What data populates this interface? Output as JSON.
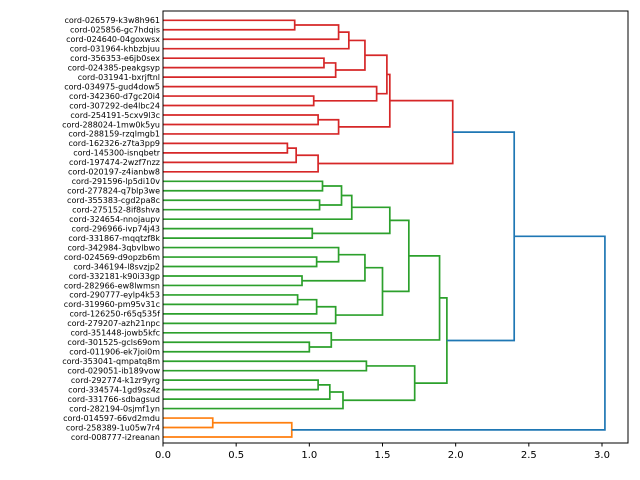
{
  "chart_data": {
    "type": "dendrogram",
    "orientation": "right",
    "title": "",
    "xlabel": "",
    "ylabel": "",
    "x_axis": {
      "tick_values": [
        0.0,
        0.5,
        1.0,
        1.5,
        2.0,
        2.5,
        3.0
      ],
      "tick_labels": [
        "0.0",
        "0.5",
        "1.0",
        "1.5",
        "2.0",
        "2.5",
        "3.0"
      ],
      "range": [
        0.0,
        3.18
      ],
      "grid": false
    },
    "palette": {
      "blue": "#1f77b4",
      "orange": "#ff7f0e",
      "green": "#2ca02c",
      "red": "#d62728",
      "spine": "#000000"
    },
    "color_threshold": 2.1,
    "cluster_color_ranges": [
      {
        "min_leaf": 0,
        "max_leaf": 16,
        "color": "red"
      },
      {
        "min_leaf": 17,
        "max_leaf": 41,
        "color": "green"
      },
      {
        "min_leaf": 42,
        "max_leaf": 44,
        "color": "orange"
      }
    ],
    "leaves": [
      "cord-026579-k3w8h961",
      "cord-025856-gc7hdqis",
      "cord-024640-04goxwsx",
      "cord-031964-khbzbjuu",
      "cord-356353-e6jb0sex",
      "cord-024385-peakgsyp",
      "cord-031941-bxrjftnl",
      "cord-034975-gud4dow5",
      "cord-342360-d7gc20i4",
      "cord-307292-de4lbc24",
      "cord-254191-5cxv9l3c",
      "cord-288024-1mw0k5yu",
      "cord-288159-rzqlmgb1",
      "cord-162326-z7ta3pp9",
      "cord-145300-isnqbetr",
      "cord-197474-2wzf7nzz",
      "cord-020197-z4ianbw8",
      "cord-291596-lp5di10v",
      "cord-277824-q7blp3we",
      "cord-355383-cgd2pa8c",
      "cord-275152-8if8shva",
      "cord-324654-nnojaupv",
      "cord-296966-ivp74j43",
      "cord-331867-mqqtzf8k",
      "cord-342984-3qbvlbwo",
      "cord-024569-d9opzb6m",
      "cord-346194-l8svzjp2",
      "cord-332181-k90i33gp",
      "cord-282966-ew8lwmsn",
      "cord-290777-eylp4k53",
      "cord-319960-pm95v31c",
      "cord-126250-r65q535f",
      "cord-279207-azh21npc",
      "cord-351448-jowb5kfc",
      "cord-301525-gcls69om",
      "cord-011906-ek7joi0m",
      "cord-353041-qmpatq8m",
      "cord-029051-ib189vow",
      "cord-292774-k1zr9yrg",
      "cord-334574-1gd9sz4z",
      "cord-331766-sdbagsud",
      "cord-282194-0sjmf1yn",
      "cord-014597-66vd2mdu",
      "cord-258389-1u05w7r4",
      "cord-008777-i2reanan"
    ],
    "tree": {
      "d": 3.02,
      "c": [
        {
          "d": 2.4,
          "c": [
            {
              "d": 1.98,
              "c": [
                {
                  "d": 1.55,
                  "c": [
                    {
                      "d": 1.53,
                      "c": [
                        {
                          "d": 1.38,
                          "c": [
                            {
                              "d": 1.27,
                              "c": [
                                {
                                  "d": 1.2,
                                  "c": [
                                    {
                                      "d": 0.9,
                                      "c": [
                                        0,
                                        1
                                      ]
                                    },
                                    2
                                  ]
                                },
                                3
                              ]
                            },
                            {
                              "d": 1.18,
                              "c": [
                                {
                                  "d": 1.1,
                                  "c": [
                                    4,
                                    5
                                  ]
                                },
                                6
                              ]
                            }
                          ]
                        },
                        {
                          "d": 1.46,
                          "c": [
                            7,
                            {
                              "d": 1.03,
                              "c": [
                                8,
                                9
                              ]
                            }
                          ]
                        }
                      ]
                    },
                    {
                      "d": 1.2,
                      "c": [
                        {
                          "d": 1.06,
                          "c": [
                            10,
                            11
                          ]
                        },
                        12
                      ]
                    }
                  ]
                },
                {
                  "d": 1.06,
                  "c": [
                    {
                      "d": 0.91,
                      "c": [
                        {
                          "d": 0.85,
                          "c": [
                            13,
                            14
                          ]
                        },
                        15
                      ]
                    },
                    16
                  ]
                }
              ]
            },
            {
              "d": 1.94,
              "c": [
                {
                  "d": 1.89,
                  "c": [
                    {
                      "d": 1.68,
                      "c": [
                        {
                          "d": 1.55,
                          "c": [
                            {
                              "d": 1.29,
                              "c": [
                                {
                                  "d": 1.22,
                                  "c": [
                                    {
                                      "d": 1.09,
                                      "c": [
                                        17,
                                        18
                                      ]
                                    },
                                    {
                                      "d": 1.07,
                                      "c": [
                                        19,
                                        20
                                      ]
                                    }
                                  ]
                                },
                                21
                              ]
                            },
                            {
                              "d": 1.02,
                              "c": [
                                22,
                                23
                              ]
                            }
                          ]
                        },
                        {
                          "d": 1.5,
                          "c": [
                            {
                              "d": 1.38,
                              "c": [
                                {
                                  "d": 1.2,
                                  "c": [
                                    24,
                                    {
                                      "d": 1.05,
                                      "c": [
                                        25,
                                        26
                                      ]
                                    }
                                  ]
                                },
                                {
                                  "d": 0.95,
                                  "c": [
                                    27,
                                    28
                                  ]
                                }
                              ]
                            },
                            {
                              "d": 1.18,
                              "c": [
                                {
                                  "d": 1.05,
                                  "c": [
                                    {
                                      "d": 0.92,
                                      "c": [
                                        29,
                                        30
                                      ]
                                    },
                                    31
                                  ]
                                },
                                32
                              ]
                            }
                          ]
                        }
                      ]
                    },
                    {
                      "d": 1.15,
                      "c": [
                        33,
                        {
                          "d": 1.0,
                          "c": [
                            34,
                            35
                          ]
                        }
                      ]
                    }
                  ]
                },
                {
                  "d": 1.72,
                  "c": [
                    {
                      "d": 1.39,
                      "c": [
                        36,
                        37
                      ]
                    },
                    {
                      "d": 1.23,
                      "c": [
                        {
                          "d": 1.14,
                          "c": [
                            {
                              "d": 1.06,
                              "c": [
                                38,
                                39
                              ]
                            },
                            40
                          ]
                        },
                        41
                      ]
                    }
                  ]
                }
              ]
            }
          ]
        },
        {
          "d": 0.88,
          "c": [
            {
              "d": 0.34,
              "c": [
                42,
                43
              ]
            },
            44
          ]
        }
      ]
    }
  }
}
